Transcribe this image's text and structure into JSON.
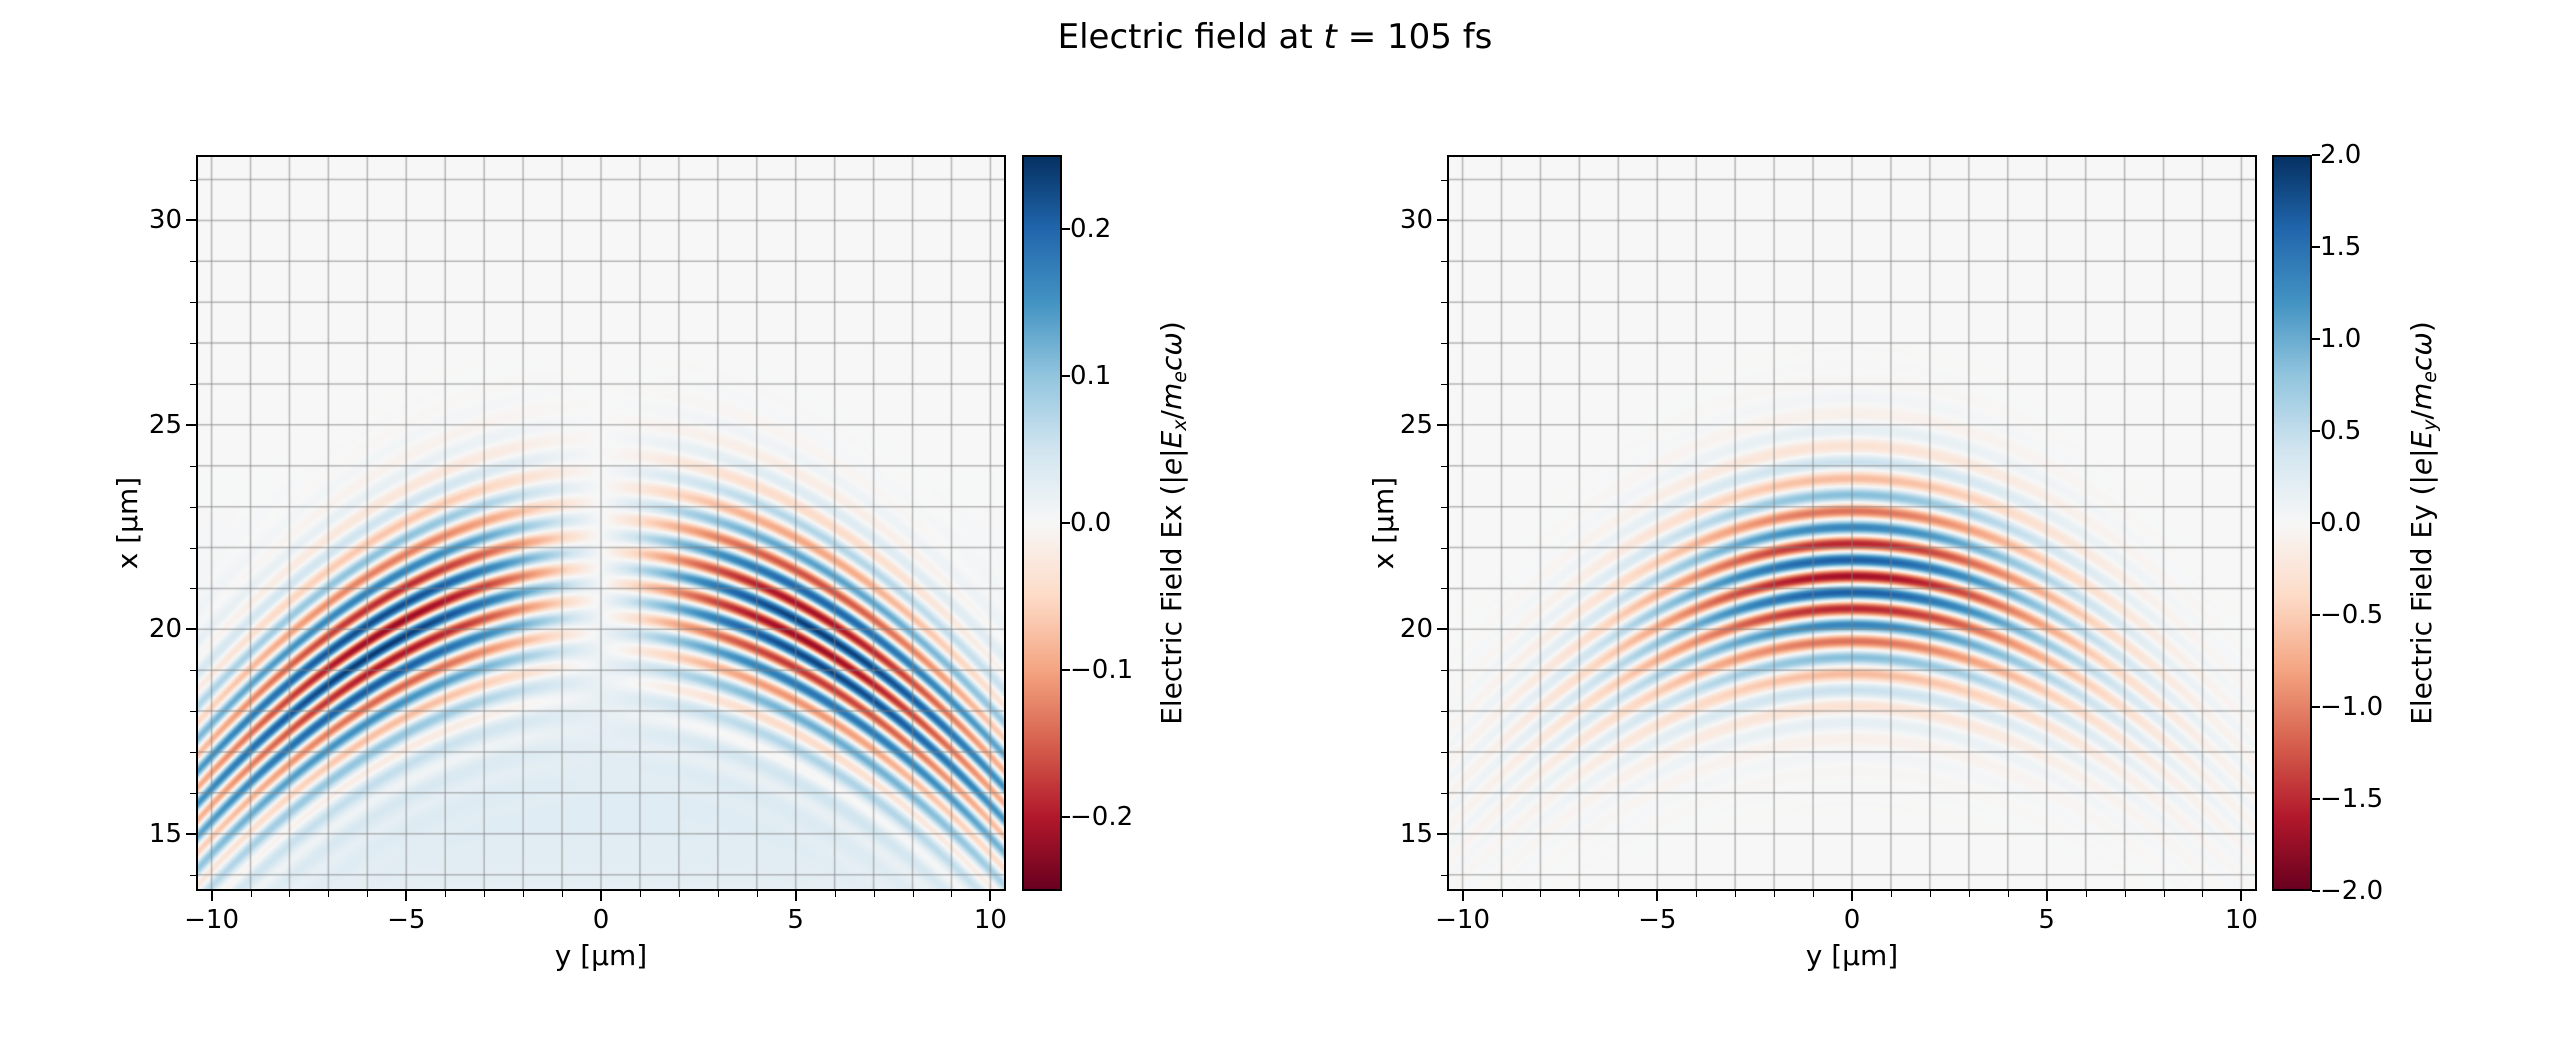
{
  "figure": {
    "title_text": "Electric field at t = 105 fs",
    "title_parts": [
      {
        "text": "Electric field at ",
        "italic": false
      },
      {
        "text": "t",
        "italic": true
      },
      {
        "text": " = 105 fs",
        "italic": false
      }
    ],
    "time_fs": 105,
    "background_color": "#ffffff"
  },
  "style": {
    "colormap": "RdBu",
    "colormap_stops": [
      {
        "t": 0.0,
        "color": "#67001f"
      },
      {
        "t": 0.1,
        "color": "#b2182b"
      },
      {
        "t": 0.2,
        "color": "#d6604d"
      },
      {
        "t": 0.3,
        "color": "#f4a582"
      },
      {
        "t": 0.4,
        "color": "#fddbc7"
      },
      {
        "t": 0.5,
        "color": "#f7f7f7"
      },
      {
        "t": 0.6,
        "color": "#d1e5f0"
      },
      {
        "t": 0.7,
        "color": "#92c5de"
      },
      {
        "t": 0.8,
        "color": "#4393c3"
      },
      {
        "t": 0.9,
        "color": "#2166ac"
      },
      {
        "t": 1.0,
        "color": "#053061"
      }
    ],
    "grid_color": "#808080",
    "spine_color": "#000000",
    "text_color": "#000000"
  },
  "chart_data": [
    {
      "type": "heatmap",
      "subplot": "left",
      "xlabel": "y [μm]",
      "ylabel": "x [μm]",
      "xlim": [
        -10.4,
        10.4
      ],
      "ylim": [
        13.6,
        31.6
      ],
      "xticks": [
        -10,
        -5,
        0,
        5,
        10
      ],
      "xticklabels": [
        "−10",
        "−5",
        "0",
        "5",
        "10"
      ],
      "yticks": [
        15,
        20,
        25,
        30
      ],
      "yticklabels": [
        "15",
        "20",
        "25",
        "30"
      ],
      "grid": true,
      "grid_spacing": 1,
      "colorbar": {
        "label_text": "Electric Field Ex (|e|Ex/mecω)",
        "label_parts": [
          {
            "text": "Electric Field Ex ("
          },
          {
            "text": "|"
          },
          {
            "text": "e",
            "italic": true
          },
          {
            "text": "|"
          },
          {
            "text": "E",
            "italic": true
          },
          {
            "text": "x",
            "italic": true,
            "sub": true
          },
          {
            "text": "/"
          },
          {
            "text": "m",
            "italic": true
          },
          {
            "text": "e",
            "italic": true,
            "sub": true
          },
          {
            "text": "c",
            "italic": true
          },
          {
            "text": "ω",
            "italic": true
          },
          {
            "text": ")"
          }
        ],
        "vmin": -0.25,
        "vmax": 0.25,
        "ticks": [
          0.2,
          0.1,
          0.0,
          -0.1,
          -0.2
        ],
        "ticklabels": [
          "0.2",
          "0.1",
          "0.0",
          "−0.1",
          "−0.2"
        ]
      },
      "field_model": {
        "component": "Ex",
        "symmetry_y": "odd",
        "amplitude": 0.23,
        "wavelength_um": 0.8,
        "pulse_center_x_um": 21.3,
        "pulse_sigma_x_um": 1.7,
        "wavefront_curvature_2R_um": 20,
        "y_scale_um": 4.5,
        "y_sigma_um": 5.5,
        "phase": "sin",
        "background": {
          "amplitude": 0.03,
          "center_x_um": 15.5,
          "sigma_x_um": 3.0
        }
      },
      "description": "Longitudinal laser field Ex: two lobes antisymmetric about y=0 peaking near y=±5 μm, |Ex| up to ~0.23, oscillation wavelength ~0.8 μm along x, wavefronts are downward-curving arcs centered near x=21 μm at y=0 dropping to ~16 μm at |y|=10 μm, faint uniform positive (light blue) background behind the pulse around x~14-18 μm."
    },
    {
      "type": "heatmap",
      "subplot": "right",
      "xlabel": "y [μm]",
      "ylabel": "x [μm]",
      "xlim": [
        -10.4,
        10.4
      ],
      "ylim": [
        13.6,
        31.6
      ],
      "xticks": [
        -10,
        -5,
        0,
        5,
        10
      ],
      "xticklabels": [
        "−10",
        "−5",
        "0",
        "5",
        "10"
      ],
      "yticks": [
        15,
        20,
        25,
        30
      ],
      "yticklabels": [
        "15",
        "20",
        "25",
        "30"
      ],
      "grid": true,
      "grid_spacing": 1,
      "colorbar": {
        "label_text": "Electric Field Ey (|e|Ey/mecω)",
        "label_parts": [
          {
            "text": "Electric Field Ey ("
          },
          {
            "text": "|"
          },
          {
            "text": "e",
            "italic": true
          },
          {
            "text": "|"
          },
          {
            "text": "E",
            "italic": true
          },
          {
            "text": "y",
            "italic": true,
            "sub": true
          },
          {
            "text": "/"
          },
          {
            "text": "m",
            "italic": true
          },
          {
            "text": "e",
            "italic": true,
            "sub": true
          },
          {
            "text": "c",
            "italic": true
          },
          {
            "text": "ω",
            "italic": true
          },
          {
            "text": ")"
          }
        ],
        "vmin": -2.0,
        "vmax": 2.0,
        "ticks": [
          2.0,
          1.5,
          1.0,
          0.5,
          0.0,
          -0.5,
          -1.0,
          -1.5,
          -2.0
        ],
        "ticklabels": [
          "2.0",
          "1.5",
          "1.0",
          "0.5",
          "0.0",
          "−0.5",
          "−1.0",
          "−1.5",
          "−2.0"
        ]
      },
      "field_model": {
        "component": "Ey",
        "symmetry_y": "even",
        "amplitude": -1.7,
        "wavelength_um": 0.8,
        "pulse_center_x_um": 21.3,
        "pulse_sigma_x_um": 1.7,
        "wavefront_curvature_2R_um": 20,
        "y_sigma_um": 4.0,
        "phase": "cos"
      },
      "description": "Transverse laser field Ey: single envelope centered at y=0, x~21 μm, |Ey| up to ~1.7, alternating red/blue half-wavelength bands (~0.4 μm thick), same downward-curving arc-shaped wavefronts as Ex, amplitude fading beyond |y|~7 μm."
    }
  ]
}
